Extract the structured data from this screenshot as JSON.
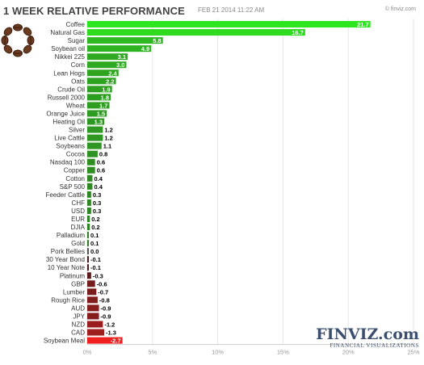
{
  "header": {
    "title": "1 WEEK RELATIVE PERFORMANCE",
    "timestamp": "FEB 21 2014 11:22 AM",
    "credit": "© finviz.com"
  },
  "brand": {
    "name": "FINVIZ.com",
    "tagline": "FINANCIAL VISUALIZATIONS"
  },
  "icons": {
    "logo": "coffee-beans-icon"
  },
  "colors": {
    "pos_dark": "#2e6b23",
    "pos_light": "#2ee61f",
    "neg_dark": "#3d1a1a",
    "neg_light": "#ee2020",
    "zero": "#555555",
    "bar_value_text": "#ffffff",
    "value_text": "#000000",
    "label_text": "#333333",
    "tick_text": "#999999",
    "grid": "#e6e6e6"
  },
  "chart_data": {
    "type": "bar",
    "orientation": "horizontal",
    "title": "1 WEEK RELATIVE PERFORMANCE",
    "xlim": [
      0,
      25
    ],
    "x_ticks": [
      0,
      5,
      10,
      15,
      20,
      25
    ],
    "x_tick_labels": [
      "0%",
      "5%",
      "10%",
      "15%",
      "20%",
      "25%"
    ],
    "grid": true,
    "legend": "none",
    "categories": [
      "Coffee",
      "Natural Gas",
      "Sugar",
      "Soybean oil",
      "Nikkei 225",
      "Corn",
      "Lean Hogs",
      "Oats",
      "Crude Oil",
      "Russell 2000",
      "Wheat",
      "Orange Juice",
      "Heating Oil",
      "Silver",
      "Live Cattle",
      "Soybeans",
      "Cocoa",
      "Nasdaq 100",
      "Copper",
      "Cotton",
      "S&P 500",
      "Feeder Cattle",
      "CHF",
      "USD",
      "EUR",
      "DJIA",
      "Palladium",
      "Gold",
      "Pork Bellies",
      "30 Year Bond",
      "10 Year Note",
      "Platinum",
      "GBP",
      "Lumber",
      "Rough Rice",
      "AUD",
      "JPY",
      "NZD",
      "CAD",
      "Soybean Meal"
    ],
    "values": [
      21.7,
      16.7,
      5.8,
      4.9,
      3.1,
      3.0,
      2.4,
      2.2,
      1.9,
      1.8,
      1.7,
      1.5,
      1.3,
      1.2,
      1.2,
      1.1,
      0.8,
      0.6,
      0.6,
      0.4,
      0.4,
      0.3,
      0.3,
      0.3,
      0.2,
      0.2,
      0.1,
      0.1,
      0.0,
      -0.1,
      -0.1,
      -0.3,
      -0.6,
      -0.7,
      -0.8,
      -0.9,
      -0.9,
      -1.2,
      -1.3,
      -2.7
    ],
    "value_labels": [
      "21.7",
      "16.7",
      "5.8",
      "4.9",
      "3.1",
      "3.0",
      "2.4",
      "2.2",
      "1.9",
      "1.8",
      "1.7",
      "1.5",
      "1.3",
      "1.2",
      "1.2",
      "1.1",
      "0.8",
      "0.6",
      "0.6",
      "0.4",
      "0.4",
      "0.3",
      "0.3",
      "0.3",
      "0.2",
      "0.2",
      "0.1",
      "0.1",
      "0.0",
      "-0.1",
      "-0.1",
      "-0.3",
      "-0.6",
      "-0.7",
      "-0.8",
      "-0.9",
      "-0.9",
      "-1.2",
      "-1.3",
      "-2.7"
    ]
  }
}
